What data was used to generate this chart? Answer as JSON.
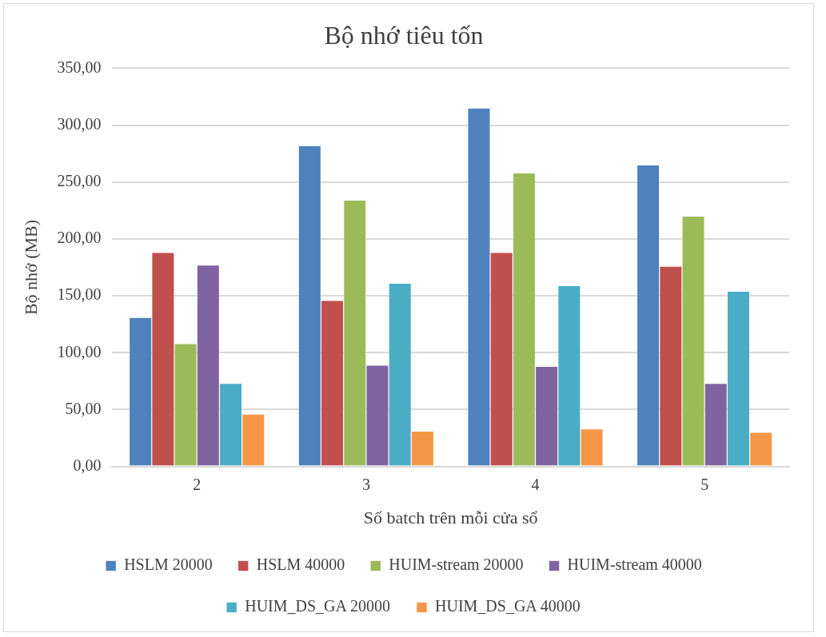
{
  "chart_data": {
    "type": "bar",
    "title": "Bộ nhớ tiêu tốn",
    "xlabel": "Số batch trên mỗi cửa sổ",
    "ylabel": "Bộ nhớ (MB)",
    "categories": [
      "2",
      "3",
      "4",
      "5"
    ],
    "series": [
      {
        "name": "HSLM 20000",
        "color": "#4f81bd",
        "values": [
          131,
          282,
          315,
          265
        ]
      },
      {
        "name": "HSLM 40000",
        "color": "#c0504d",
        "values": [
          188,
          146,
          188,
          176
        ]
      },
      {
        "name": "HUIM-stream 20000",
        "color": "#9bbb59",
        "values": [
          108,
          234,
          258,
          220
        ]
      },
      {
        "name": "HUIM-stream 40000",
        "color": "#8064a2",
        "values": [
          177,
          89,
          88,
          73
        ]
      },
      {
        "name": "HUIM_DS_GA 20000",
        "color": "#4bacc6",
        "values": [
          73,
          161,
          159,
          154
        ]
      },
      {
        "name": "HUIM_DS_GA 40000",
        "color": "#f79646",
        "values": [
          46,
          31,
          33,
          30
        ]
      }
    ],
    "ylim": [
      0,
      350
    ],
    "yticks": [
      {
        "value": 0,
        "label": "0,00"
      },
      {
        "value": 50,
        "label": "50,00"
      },
      {
        "value": 100,
        "label": "100,00"
      },
      {
        "value": 150,
        "label": "150,00"
      },
      {
        "value": 200,
        "label": "200,00"
      },
      {
        "value": 250,
        "label": "250,00"
      },
      {
        "value": 300,
        "label": "300,00"
      },
      {
        "value": 350,
        "label": "350,00"
      }
    ],
    "grid": "y",
    "legend": "bottom"
  }
}
